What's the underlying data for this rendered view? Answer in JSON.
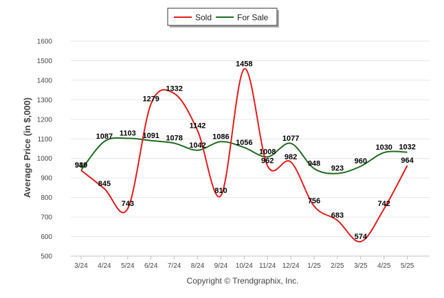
{
  "chart_data": {
    "type": "line",
    "title": "",
    "ylabel": "Average Price (in $,000)",
    "xlabel": "",
    "categories": [
      "3/24",
      "4/24",
      "5/24",
      "6/24",
      "7/24",
      "8/24",
      "9/24",
      "10/24",
      "11/24",
      "12/24",
      "1/25",
      "2/25",
      "3/25",
      "4/25",
      "5/25"
    ],
    "ylim": [
      500,
      1600
    ],
    "yticks": [
      500,
      600,
      700,
      800,
      900,
      1000,
      1100,
      1200,
      1300,
      1400,
      1500,
      1600
    ],
    "series": [
      {
        "name": "Sold",
        "color": "#e41a1c",
        "values": [
          939,
          845,
          743,
          1279,
          1332,
          1142,
          810,
          1458,
          962,
          982,
          756,
          683,
          574,
          742,
          964
        ]
      },
      {
        "name": "For Sale",
        "color": "#1f6a1f",
        "values": [
          940,
          1087,
          1103,
          1091,
          1078,
          1042,
          1086,
          1056,
          1008,
          1077,
          948,
          923,
          960,
          1030,
          1032
        ]
      }
    ],
    "legend_position": "top-center",
    "grid": true
  },
  "footer": {
    "credit": "Copyright © Trendgraphix, Inc."
  }
}
